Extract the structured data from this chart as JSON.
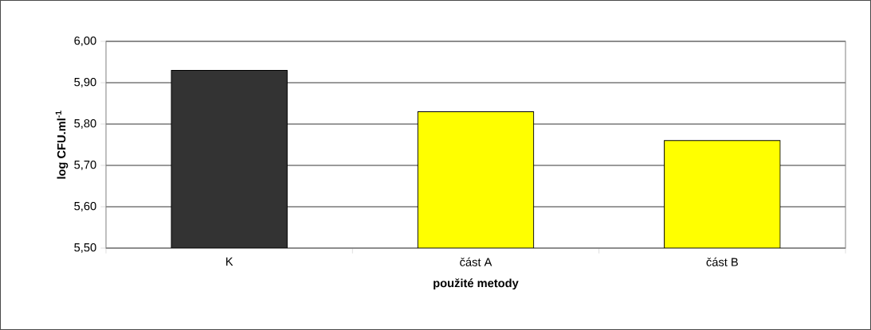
{
  "chart_data": {
    "type": "bar",
    "xlabel": "použité metody",
    "ylabel": "log CFU.ml$^{-1}$",
    "categories": [
      "K",
      "část A",
      "část B"
    ],
    "values": [
      5.93,
      5.83,
      5.76
    ],
    "colors": [
      "#333333",
      "#ffff00",
      "#ffff00"
    ],
    "ylim": [
      5.5,
      6.0
    ],
    "yticks": [
      {
        "value": 5.5,
        "label": "5,50"
      },
      {
        "value": 5.6,
        "label": "5,60"
      },
      {
        "value": 5.7,
        "label": "5,70"
      },
      {
        "value": 5.8,
        "label": "5,80"
      },
      {
        "value": 5.9,
        "label": "5,90"
      },
      {
        "value": 6.0,
        "label": "6,00"
      }
    ],
    "grid": "y"
  }
}
